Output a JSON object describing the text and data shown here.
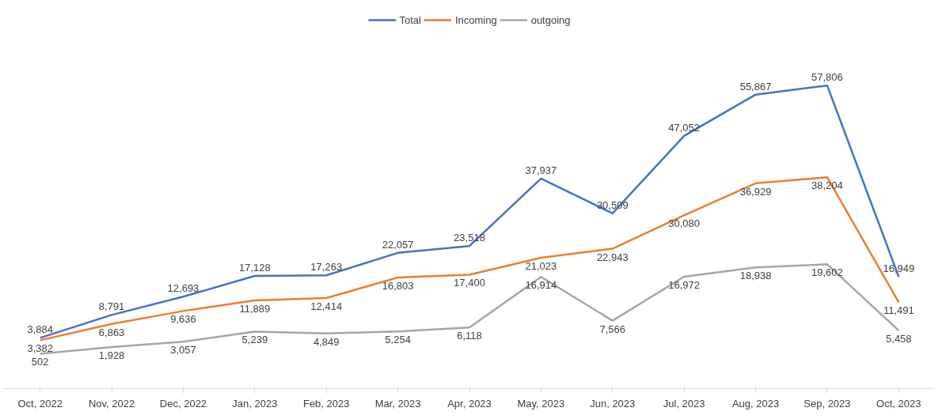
{
  "chart_data": {
    "type": "line",
    "categories": [
      "Oct, 2022",
      "Nov, 2022",
      "Dec, 2022",
      "Jan, 2023",
      "Feb, 2023",
      "Mar, 2023",
      "Apr, 2023",
      "May, 2023",
      "Jun, 2023",
      "Jul, 2023",
      "Aug, 2023",
      "Sep, 2023",
      "Oct, 2023"
    ],
    "series": [
      {
        "name": "Total",
        "color": "#4472c4",
        "values": [
          3884,
          8791,
          12693,
          17128,
          17263,
          22057,
          23518,
          37937,
          30509,
          47052,
          55867,
          57806,
          16949
        ],
        "value_labels": [
          "3,884",
          "8,791",
          "12,693",
          "17,128",
          "17,263",
          "22,057",
          "23,518",
          "37,937",
          "30,509",
          "47,052",
          "55,867",
          "57,806",
          "16,949"
        ]
      },
      {
        "name": "Incoming",
        "color": "#ed7d31",
        "values": [
          3382,
          6863,
          9636,
          11889,
          12414,
          16803,
          17400,
          21023,
          22943,
          30080,
          36929,
          38204,
          11491
        ],
        "value_labels": [
          "3,382",
          "6,863",
          "9,636",
          "11,889",
          "12,414",
          "16,803",
          "17,400",
          "21,023",
          "22,943",
          "30,080",
          "36,929",
          "38,204",
          "11,491"
        ]
      },
      {
        "name": "outgoing",
        "color": "#a5a5a5",
        "values": [
          502,
          1928,
          3057,
          5239,
          4849,
          5254,
          6118,
          16914,
          7566,
          16972,
          18938,
          19602,
          5458
        ],
        "value_labels": [
          "502",
          "1,928",
          "3,057",
          "5,239",
          "4,849",
          "5,254",
          "6,118",
          "16,914",
          "7,566",
          "16,972",
          "18,938",
          "19,602",
          "5,458"
        ]
      }
    ],
    "legend": "top",
    "marker": "none",
    "line_style": "solid"
  }
}
